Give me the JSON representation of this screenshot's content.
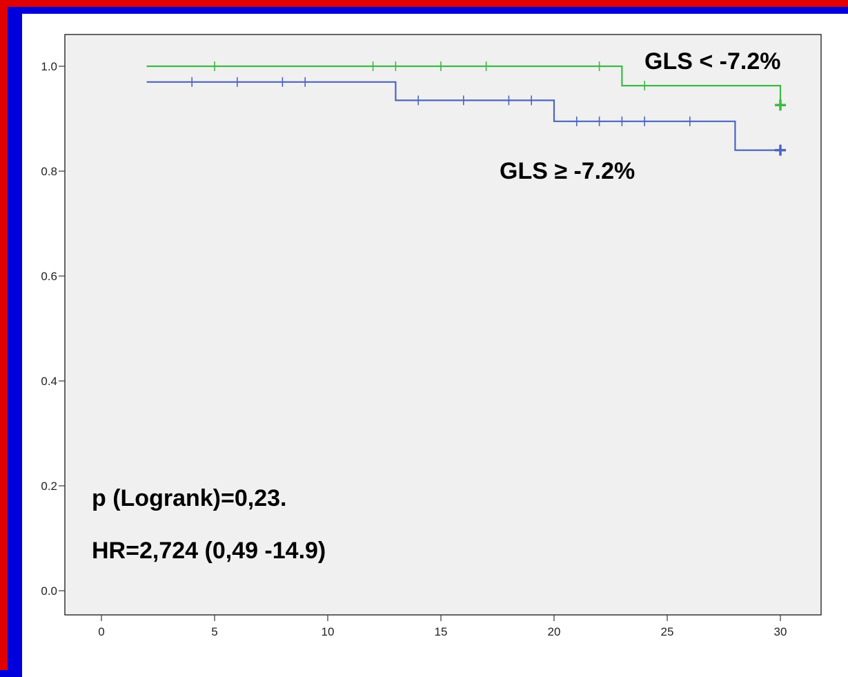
{
  "chart_data": {
    "type": "line",
    "subtype": "kaplan-meier-step",
    "title": "",
    "xlabel": "",
    "ylabel": "",
    "xlim": [
      0,
      32
    ],
    "ylim": [
      0,
      1.05
    ],
    "x_ticks": [
      "0",
      "5",
      "10",
      "15",
      "20",
      "25",
      "30"
    ],
    "y_ticks": [
      "0.0",
      "0.2",
      "0.4",
      "0.6",
      "0.8",
      "1.0"
    ],
    "grid": false,
    "background": "#f0f0f0",
    "series": [
      {
        "name": "GLS < -7.2%",
        "color": "#3cb944",
        "steps": [
          [
            2,
            1.0
          ],
          [
            23,
            1.0
          ],
          [
            23,
            0.963
          ],
          [
            30,
            0.963
          ],
          [
            30,
            0.926
          ]
        ],
        "censored": [
          [
            5,
            1.0
          ],
          [
            12,
            1.0
          ],
          [
            13,
            1.0
          ],
          [
            15,
            1.0
          ],
          [
            17,
            1.0
          ],
          [
            22,
            1.0
          ],
          [
            24,
            0.963
          ],
          [
            30,
            0.926
          ]
        ]
      },
      {
        "name": "GLS ≥ -7.2%",
        "color": "#4b64c0",
        "steps": [
          [
            2,
            0.97
          ],
          [
            13,
            0.97
          ],
          [
            13,
            0.935
          ],
          [
            20,
            0.935
          ],
          [
            20,
            0.895
          ],
          [
            28,
            0.895
          ],
          [
            28,
            0.84
          ],
          [
            30,
            0.84
          ]
        ],
        "censored": [
          [
            4,
            0.97
          ],
          [
            6,
            0.97
          ],
          [
            8,
            0.97
          ],
          [
            9,
            0.97
          ],
          [
            14,
            0.935
          ],
          [
            16,
            0.935
          ],
          [
            18,
            0.935
          ],
          [
            19,
            0.935
          ],
          [
            21,
            0.895
          ],
          [
            22,
            0.895
          ],
          [
            23,
            0.895
          ],
          [
            24,
            0.895
          ],
          [
            26,
            0.895
          ],
          [
            30,
            0.84
          ]
        ]
      }
    ],
    "annotations": {
      "pvalue": "p (Logrank)=0,23.",
      "hr": "HR=2,724 (0,49 -14.9)"
    }
  }
}
